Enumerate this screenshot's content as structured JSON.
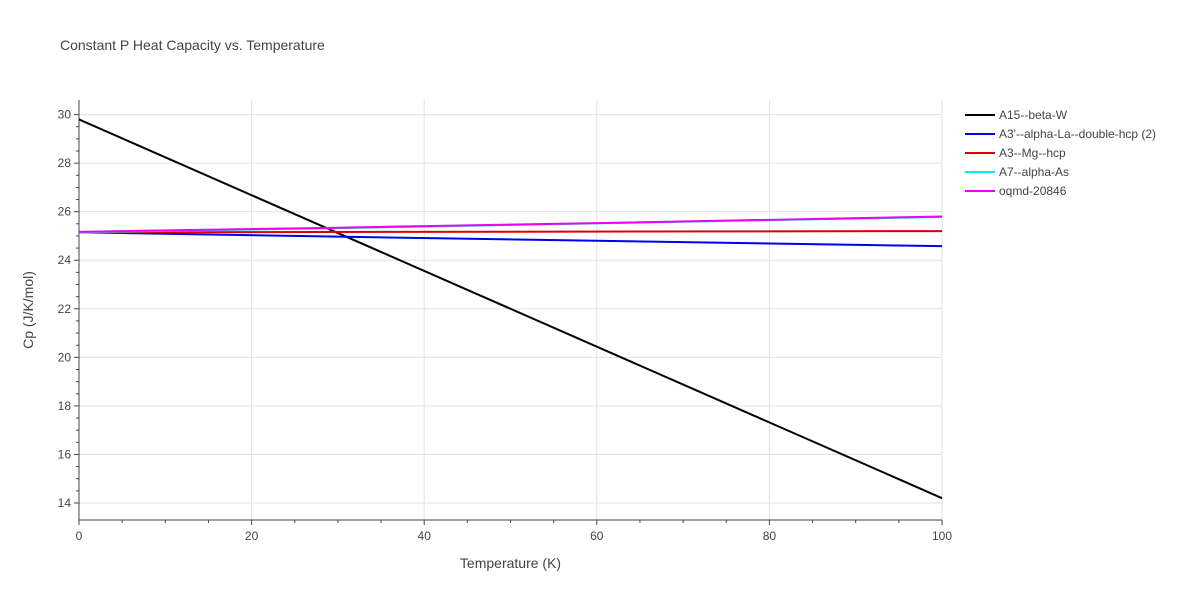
{
  "chart_data": {
    "type": "line",
    "title": "Constant P Heat Capacity vs. Temperature",
    "xlabel": "Temperature (K)",
    "ylabel": "Cp (J/K/mol)",
    "xlim": [
      0,
      100
    ],
    "ylim": [
      13.3,
      30.6
    ],
    "x_ticks": [
      0,
      20,
      40,
      60,
      80,
      100
    ],
    "y_ticks": [
      14,
      16,
      18,
      20,
      22,
      24,
      26,
      28,
      30
    ],
    "grid": true,
    "legend_position": "right",
    "series": [
      {
        "name": "A15--beta-W",
        "color": "#000000",
        "x": [
          0,
          100
        ],
        "y": [
          29.8,
          14.2
        ]
      },
      {
        "name": "A3'--alpha-La--double-hcp (2)",
        "color": "#0000ee",
        "x": [
          0,
          30,
          60,
          100
        ],
        "y": [
          25.15,
          24.97,
          24.8,
          24.58
        ]
      },
      {
        "name": "A3--Mg--hcp",
        "color": "#dd0000",
        "x": [
          0,
          100
        ],
        "y": [
          25.15,
          25.2
        ]
      },
      {
        "name": "A7--alpha-As",
        "color": "#00eeee",
        "x": [
          0,
          30,
          60,
          100
        ],
        "y": [
          25.15,
          25.32,
          25.52,
          25.78
        ]
      },
      {
        "name": "oqmd-20846",
        "color": "#ee00ee",
        "x": [
          0,
          30,
          60,
          100
        ],
        "y": [
          25.17,
          25.34,
          25.53,
          25.8
        ]
      }
    ]
  }
}
